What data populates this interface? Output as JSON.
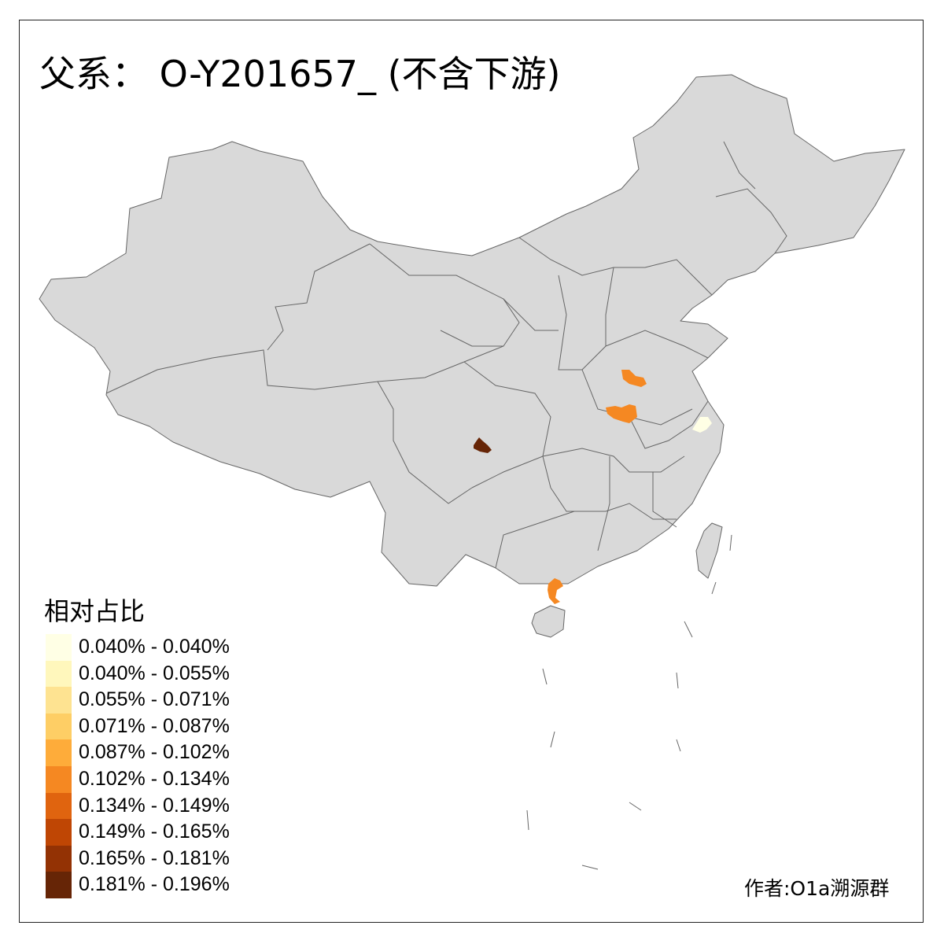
{
  "title": "父系： O-Y201657_ (不含下游)",
  "legend": {
    "title": "相对占比",
    "items": [
      {
        "label": "0.040% - 0.040%",
        "color": "#FFFFE5"
      },
      {
        "label": "0.040% - 0.055%",
        "color": "#FFF7BC"
      },
      {
        "label": "0.055% - 0.071%",
        "color": "#FEE391"
      },
      {
        "label": "0.071% - 0.087%",
        "color": "#FECE65"
      },
      {
        "label": "0.087% - 0.102%",
        "color": "#FEAC3A"
      },
      {
        "label": "0.102% - 0.134%",
        "color": "#F58822"
      },
      {
        "label": "0.134% - 0.149%",
        "color": "#E0640F"
      },
      {
        "label": "0.149% - 0.165%",
        "color": "#BF4604"
      },
      {
        "label": "0.165% - 0.181%",
        "color": "#933204"
      },
      {
        "label": "0.181% - 0.196%",
        "color": "#662506"
      }
    ]
  },
  "map": {
    "base_fill": "#D9D9D9",
    "border_color": "#666666",
    "highlighted_region_bins": [
      9,
      5,
      5,
      5,
      0
    ]
  },
  "credit": "作者:O1a溯源群"
}
